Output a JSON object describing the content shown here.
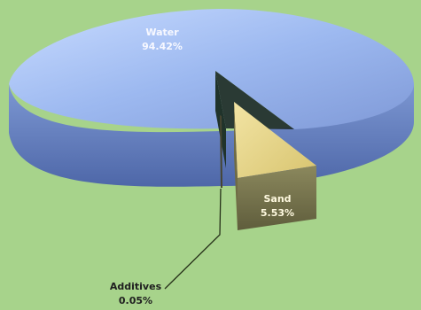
{
  "chart_data": {
    "type": "pie",
    "title": "",
    "slices": [
      {
        "label": "Water",
        "value": 94.42,
        "value_label": "94.42%",
        "color": "#8fa9e6"
      },
      {
        "label": "Sand",
        "value": 5.53,
        "value_label": "5.53%",
        "color": "#e7d58e"
      },
      {
        "label": "Additives",
        "value": 0.05,
        "value_label": "0.05%",
        "color": "#4a4a32"
      }
    ],
    "style": "3d-exploded",
    "background_color": "#a7d38b"
  }
}
